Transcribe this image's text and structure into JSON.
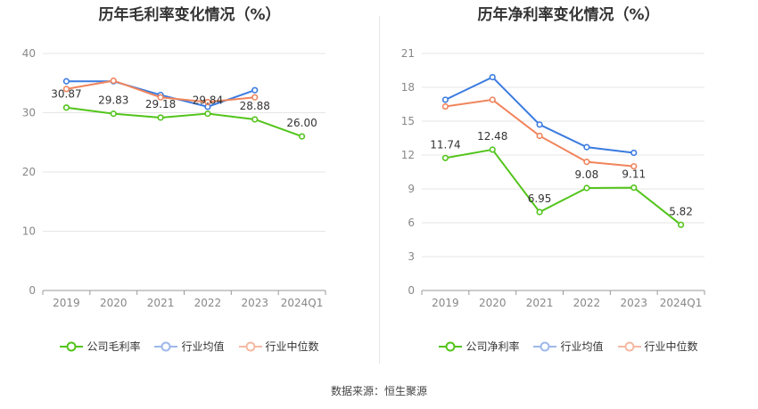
{
  "footer": {
    "source": "数据来源：恒生聚源"
  },
  "legend_names": [
    "公司毛利率",
    "行业均值",
    "行业中位数",
    "公司净利率"
  ],
  "chart_data": [
    {
      "type": "line",
      "title": "历年毛利率变化情况（%）",
      "categories": [
        "2019",
        "2020",
        "2021",
        "2022",
        "2023",
        "2024Q1"
      ],
      "ylim": [
        0,
        40
      ],
      "yticks": [
        "0",
        "10",
        "20",
        "30",
        "40"
      ],
      "series": [
        {
          "name": "公司毛利率",
          "color": "#52c41a",
          "values": [
            30.87,
            29.83,
            29.18,
            29.84,
            28.88,
            26.0
          ],
          "labels": [
            "30.87",
            "29.83",
            "29.18",
            "29.84",
            "28.88",
            "26.00"
          ]
        },
        {
          "name": "行业均值",
          "color": "#3b7be0",
          "values": [
            35.3,
            35.3,
            33.0,
            31.0,
            33.8,
            null
          ]
        },
        {
          "name": "行业中位数",
          "color": "#f0845c",
          "values": [
            34.0,
            35.4,
            32.6,
            31.8,
            32.6,
            null
          ]
        }
      ]
    },
    {
      "type": "line",
      "title": "历年净利率变化情况（%）",
      "categories": [
        "2019",
        "2020",
        "2021",
        "2022",
        "2023",
        "2024Q1"
      ],
      "ylim": [
        0,
        21
      ],
      "yticks": [
        "0",
        "3",
        "6",
        "9",
        "12",
        "15",
        "18",
        "21"
      ],
      "series": [
        {
          "name": "公司净利率",
          "color": "#52c41a",
          "values": [
            11.74,
            12.48,
            6.95,
            9.08,
            9.11,
            5.82
          ],
          "labels": [
            "11.74",
            "12.48",
            "6.95",
            "9.08",
            "9.11",
            "5.82"
          ]
        },
        {
          "name": "行业均值",
          "color": "#3b7be0",
          "values": [
            16.9,
            18.9,
            14.7,
            12.7,
            12.2,
            null
          ]
        },
        {
          "name": "行业中位数",
          "color": "#f0845c",
          "values": [
            16.3,
            16.9,
            13.7,
            11.4,
            11.0,
            null
          ]
        }
      ]
    }
  ]
}
